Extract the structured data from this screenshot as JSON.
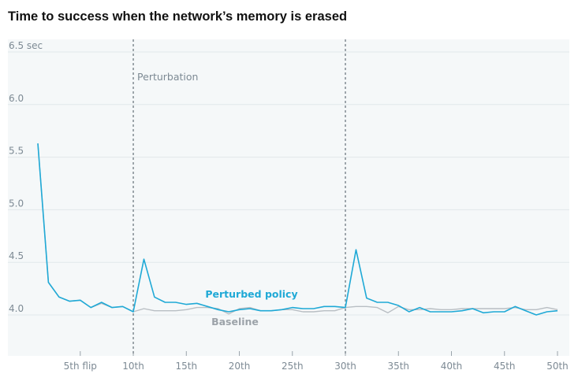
{
  "title": "Time to success when the network’s memory is erased",
  "chart_data": {
    "type": "line",
    "title": "Time to success when the network’s memory is erased",
    "xlabel": "",
    "ylabel": "",
    "xlim": [
      0,
      50
    ],
    "ylim": [
      3.6,
      6.5
    ],
    "grid": true,
    "y_ticks": [
      {
        "value": 6.5,
        "label": "6.5 sec"
      },
      {
        "value": 6.0,
        "label": "6.0"
      },
      {
        "value": 5.5,
        "label": "5.5"
      },
      {
        "value": 5.0,
        "label": "5.0"
      },
      {
        "value": 4.5,
        "label": "4.5"
      },
      {
        "value": 4.0,
        "label": "4.0"
      }
    ],
    "x_ticks": [
      {
        "value": 5,
        "label": "5th flip"
      },
      {
        "value": 10,
        "label": "10th"
      },
      {
        "value": 15,
        "label": "15th"
      },
      {
        "value": 20,
        "label": "20th"
      },
      {
        "value": 25,
        "label": "25th"
      },
      {
        "value": 30,
        "label": "30th"
      },
      {
        "value": 35,
        "label": "35th"
      },
      {
        "value": 40,
        "label": "40th"
      },
      {
        "value": 45,
        "label": "45th"
      },
      {
        "value": 50,
        "label": "50th"
      }
    ],
    "annotations": [
      {
        "text": "Perturbation",
        "x": 10
      },
      {
        "text": "",
        "x": 30
      }
    ],
    "x": [
      1,
      2,
      3,
      4,
      5,
      6,
      7,
      8,
      9,
      10,
      11,
      12,
      13,
      14,
      15,
      16,
      17,
      18,
      19,
      20,
      21,
      22,
      23,
      24,
      25,
      26,
      27,
      28,
      29,
      30,
      31,
      32,
      33,
      34,
      35,
      36,
      37,
      38,
      39,
      40,
      41,
      42,
      43,
      44,
      45,
      46,
      47,
      48,
      49,
      50
    ],
    "series": [
      {
        "name": "Perturbed policy",
        "color": "#1fa9d6",
        "values": [
          5.63,
          4.31,
          4.17,
          4.13,
          4.14,
          4.07,
          4.12,
          4.07,
          4.08,
          4.03,
          4.53,
          4.17,
          4.12,
          4.12,
          4.1,
          4.11,
          4.08,
          4.05,
          4.03,
          4.05,
          4.06,
          4.04,
          4.04,
          4.05,
          4.07,
          4.06,
          4.06,
          4.08,
          4.08,
          4.07,
          4.62,
          4.16,
          4.12,
          4.12,
          4.09,
          4.03,
          4.07,
          4.03,
          4.03,
          4.03,
          4.04,
          4.06,
          4.02,
          4.03,
          4.03,
          4.08,
          4.04,
          4.0,
          4.03,
          4.04
        ]
      },
      {
        "name": "Baseline",
        "color": "#b8bec3",
        "values": [
          5.63,
          4.31,
          4.17,
          4.13,
          4.14,
          4.07,
          4.11,
          4.07,
          4.08,
          4.03,
          4.06,
          4.04,
          4.04,
          4.04,
          4.05,
          4.07,
          4.07,
          4.06,
          4.01,
          4.06,
          4.07,
          4.04,
          4.04,
          4.05,
          4.05,
          4.03,
          4.03,
          4.04,
          4.04,
          4.07,
          4.08,
          4.08,
          4.07,
          4.02,
          4.08,
          4.05,
          4.05,
          4.06,
          4.05,
          4.05,
          4.06,
          4.06,
          4.06,
          4.06,
          4.06,
          4.07,
          4.05,
          4.05,
          4.07,
          4.05
        ]
      }
    ],
    "series_labels": [
      {
        "text": "Perturbed policy",
        "color": "#1fa9d6"
      },
      {
        "text": "Baseline",
        "color": "#9ca3a9"
      }
    ]
  }
}
